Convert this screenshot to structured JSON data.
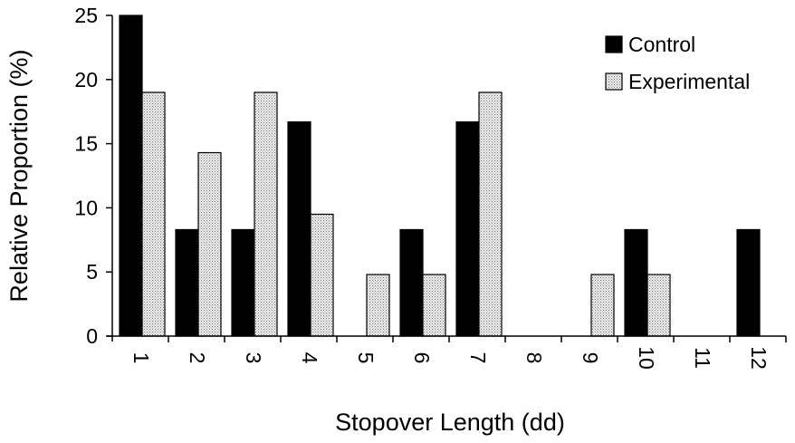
{
  "chart_data": {
    "type": "bar",
    "title": "",
    "xlabel": "Stopover Length (dd)",
    "ylabel": "Relative Proportion (%)",
    "ylim": [
      0,
      25
    ],
    "yticks": [
      "0",
      "5",
      "10",
      "15",
      "20",
      "25"
    ],
    "categories": [
      "1",
      "2",
      "3",
      "4",
      "5",
      "6",
      "7",
      "8",
      "9",
      "10",
      "11",
      "12"
    ],
    "series": [
      {
        "name": "Control",
        "color": "#000000",
        "pattern": "solid",
        "values": [
          25,
          8.3,
          8.3,
          16.7,
          0,
          8.3,
          16.7,
          0,
          0,
          8.3,
          0,
          8.3
        ]
      },
      {
        "name": "Experimental",
        "color": "#e2e2e2",
        "pattern": "dotted",
        "values": [
          19.0,
          14.3,
          19.0,
          9.5,
          4.8,
          4.8,
          19.0,
          0,
          4.8,
          4.8,
          0,
          0
        ]
      }
    ],
    "legend_position": "top-right",
    "grid": false
  }
}
